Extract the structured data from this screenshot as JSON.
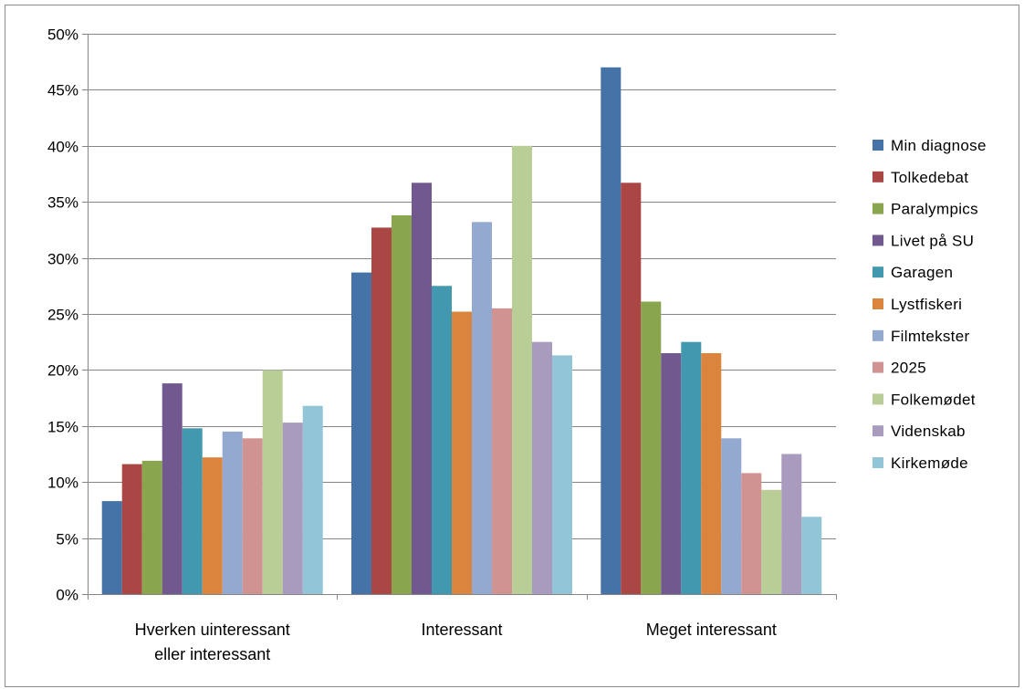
{
  "chart_data": {
    "type": "bar",
    "title": "",
    "xlabel": "",
    "ylabel": "",
    "ylim": [
      0,
      50
    ],
    "ytick_step": 5,
    "ytick_format": "percent",
    "grid": true,
    "legend_position": "right",
    "categories": [
      [
        "Hverken uinteressant",
        "eller interessant"
      ],
      [
        "Interessant"
      ],
      [
        "Meget interessant"
      ]
    ],
    "series": [
      {
        "name": "Min diagnose",
        "color": "#4572a7",
        "values": [
          8.3,
          28.7,
          47.0
        ]
      },
      {
        "name": "Tolkedebat",
        "color": "#aa4643",
        "values": [
          11.6,
          32.7,
          36.7
        ]
      },
      {
        "name": "Paralympics",
        "color": "#89a54e",
        "values": [
          11.9,
          33.8,
          26.1
        ]
      },
      {
        "name": "Livet på SU",
        "color": "#71588f",
        "values": [
          18.8,
          36.7,
          21.5
        ]
      },
      {
        "name": "Garagen",
        "color": "#4198af",
        "values": [
          14.8,
          27.5,
          22.5
        ]
      },
      {
        "name": "Lystfiskeri",
        "color": "#db843d",
        "values": [
          12.2,
          25.2,
          21.5
        ]
      },
      {
        "name": "Filmtekster",
        "color": "#93a9cf",
        "values": [
          14.5,
          33.2,
          13.9
        ]
      },
      {
        "name": "2025",
        "color": "#d19392",
        "values": [
          13.9,
          25.5,
          10.8
        ]
      },
      {
        "name": "Folkemødet",
        "color": "#b9cd96",
        "values": [
          20.0,
          40.0,
          9.3
        ]
      },
      {
        "name": "Videnskab",
        "color": "#a99bbd",
        "values": [
          15.3,
          22.5,
          12.5
        ]
      },
      {
        "name": "Kirkemøde",
        "color": "#92c6d6",
        "values": [
          16.8,
          21.3,
          6.9
        ]
      }
    ]
  }
}
